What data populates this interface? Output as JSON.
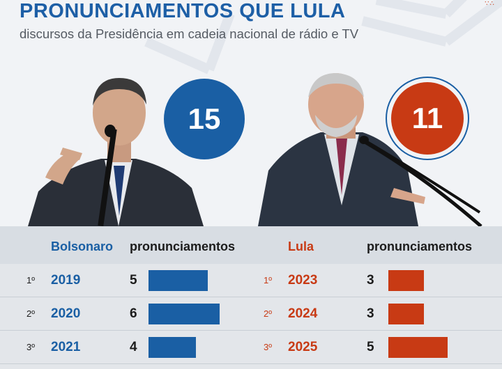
{
  "title": "PRONUNCIAMENTOS QUE LULA",
  "subtitle": "discursos da Presidência em cadeia nacional de rádio e TV",
  "corner_mark": "∵∴",
  "colors": {
    "bolsonaro": "#1a5fa4",
    "lula": "#c83a14",
    "background": "#f1f3f6"
  },
  "totals": {
    "bolsonaro": "15",
    "lula": "11"
  },
  "table": {
    "left_header": "Bolsonaro",
    "right_header": "Lula",
    "value_header": "pronunciamentos"
  },
  "chart_data": {
    "type": "bar",
    "title": "PRONUNCIAMENTOS QUE LULA",
    "subtitle": "discursos da Presidência em cadeia nacional de rádio e TV",
    "series": [
      {
        "name": "Bolsonaro",
        "total": 15,
        "ranks": [
          "1º",
          "2º",
          "3º"
        ],
        "categories": [
          "2019",
          "2020",
          "2021"
        ],
        "values": [
          5,
          6,
          4
        ]
      },
      {
        "name": "Lula",
        "total": 11,
        "ranks": [
          "1º",
          "2º",
          "3º"
        ],
        "categories": [
          "2023",
          "2024",
          "2025"
        ],
        "values": [
          3,
          3,
          5
        ]
      }
    ],
    "value_label": "pronunciamentos"
  }
}
